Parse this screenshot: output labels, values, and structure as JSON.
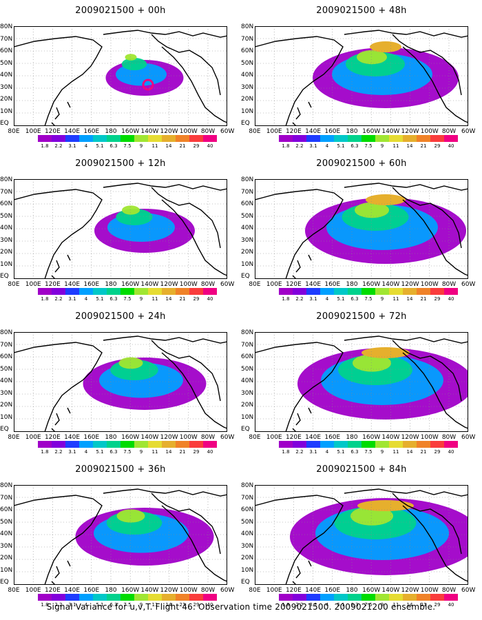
{
  "panels": [
    {
      "title": "2009021500 + 00h",
      "level": 0.15
    },
    {
      "title": "2009021500 + 12h",
      "level": 0.3
    },
    {
      "title": "2009021500 + 24h",
      "level": 0.45
    },
    {
      "title": "2009021500 + 36h",
      "level": 0.55
    },
    {
      "title": "2009021500 + 48h",
      "level": 0.6
    },
    {
      "title": "2009021500 + 60h",
      "level": 0.7
    },
    {
      "title": "2009021500 + 72h",
      "level": 0.8
    },
    {
      "title": "2009021500 + 84h",
      "level": 0.9
    }
  ],
  "lat_labels": [
    "80N",
    "70N",
    "60N",
    "50N",
    "40N",
    "30N",
    "20N",
    "10N",
    "EQ"
  ],
  "lon_labels": [
    "80E",
    "100E",
    "120E",
    "140E",
    "160E",
    "180",
    "160W",
    "140W",
    "120W",
    "100W",
    "80W",
    "60W"
  ],
  "colorbar": {
    "labels": [
      "1.8",
      "2.2",
      "3.1",
      "4",
      "5.1",
      "6.3",
      "7.5",
      "9",
      "11",
      "14",
      "21",
      "29",
      "40"
    ],
    "colors": [
      "#a000c8",
      "#8200dc",
      "#1e3cff",
      "#00a0ff",
      "#00c8c8",
      "#00d28c",
      "#00dc00",
      "#a0e632",
      "#e6dc32",
      "#e6af2d",
      "#f08228",
      "#fa3c3c",
      "#f00082"
    ]
  },
  "caption": "Signal Variance for u,v,T. Flight 46. Observation time 2009021500. 2009021200 ensemble."
}
